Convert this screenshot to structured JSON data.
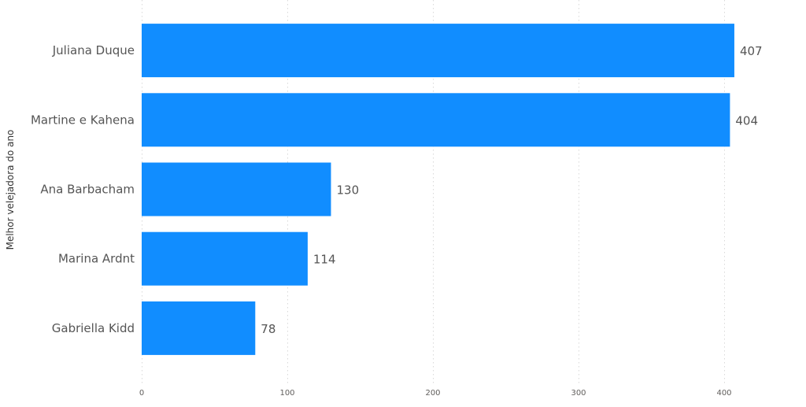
{
  "chart_data": {
    "type": "bar",
    "orientation": "horizontal",
    "title": "",
    "xlabel": "",
    "ylabel": "Melhor velejadora do ano",
    "categories": [
      "Juliana Duque",
      "Martine e Kahena",
      "Ana Barbacham",
      "Marina Ardnt",
      "Gabriella Kidd"
    ],
    "values": [
      407,
      404,
      130,
      114,
      78
    ],
    "data_labels": [
      "407",
      "404",
      "130",
      "114",
      "78"
    ],
    "xlim": [
      0,
      420
    ],
    "x_ticks": [
      0,
      100,
      200,
      300,
      400
    ],
    "x_tick_labels": [
      "0",
      "100",
      "200",
      "300",
      "400"
    ],
    "grid": {
      "vertical": true,
      "style": "dotted"
    },
    "bar_color": "#118dff",
    "legend": "none"
  }
}
